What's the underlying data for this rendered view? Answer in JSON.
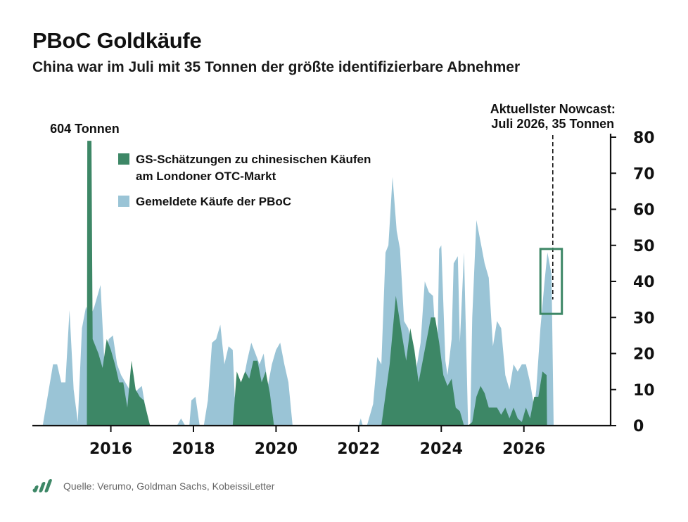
{
  "header": {
    "title": "PBoC Goldkäufe",
    "subtitle": "China war im Juli mit 35 Tonnen der größte identifizierbare Abnehmer"
  },
  "footer": {
    "source": "Quelle: Verumo, Goldman Sachs, KobeissiLetter",
    "logo_icon": "bar-chart-logo-icon"
  },
  "colors": {
    "gs_series": "#3d8766",
    "pboc_series": "#9ac4d6",
    "highlight_box": "#3d8766"
  },
  "chart_data": {
    "type": "area",
    "title": "PBoC Goldkäufe",
    "ylim": [
      0,
      80
    ],
    "yticks": [
      0,
      10,
      20,
      30,
      40,
      50,
      60,
      70,
      80
    ],
    "y_axis_side": "right",
    "xlim": [
      2014.1,
      2028.1
    ],
    "xticks": [
      2016,
      2018,
      2020,
      2022,
      2024,
      2026
    ],
    "grid": false,
    "legend_position": "top-left",
    "series": [
      {
        "name": "GS-Schätzungen zu chinesischen Käufen am Londoner OTC-Markt",
        "color": "#3d8766",
        "points": [
          [
            2015.42,
            0
          ],
          [
            2015.43,
            79
          ],
          [
            2015.53,
            79
          ],
          [
            2015.56,
            24
          ],
          [
            2015.7,
            20
          ],
          [
            2015.8,
            16
          ],
          [
            2015.9,
            24
          ],
          [
            2016.0,
            21
          ],
          [
            2016.1,
            17
          ],
          [
            2016.2,
            12
          ],
          [
            2016.3,
            12
          ],
          [
            2016.4,
            5
          ],
          [
            2016.5,
            18
          ],
          [
            2016.6,
            10
          ],
          [
            2016.7,
            8
          ],
          [
            2016.8,
            7
          ],
          [
            2016.95,
            0
          ],
          [
            2018.95,
            0
          ],
          [
            2019.05,
            15
          ],
          [
            2019.15,
            12
          ],
          [
            2019.25,
            15
          ],
          [
            2019.35,
            13
          ],
          [
            2019.45,
            18
          ],
          [
            2019.55,
            18
          ],
          [
            2019.65,
            12
          ],
          [
            2019.75,
            15
          ],
          [
            2019.85,
            9
          ],
          [
            2019.95,
            0
          ],
          [
            2022.55,
            0
          ],
          [
            2022.75,
            17
          ],
          [
            2022.9,
            36
          ],
          [
            2023.05,
            25
          ],
          [
            2023.15,
            18
          ],
          [
            2023.25,
            27
          ],
          [
            2023.35,
            21
          ],
          [
            2023.45,
            12
          ],
          [
            2023.55,
            18
          ],
          [
            2023.65,
            24
          ],
          [
            2023.75,
            30
          ],
          [
            2023.85,
            30
          ],
          [
            2023.95,
            23
          ],
          [
            2024.05,
            14
          ],
          [
            2024.15,
            11
          ],
          [
            2024.25,
            13
          ],
          [
            2024.35,
            5
          ],
          [
            2024.45,
            4
          ],
          [
            2024.55,
            0
          ],
          [
            2024.65,
            0
          ],
          [
            2024.75,
            1
          ],
          [
            2024.85,
            8
          ],
          [
            2024.95,
            11
          ],
          [
            2025.05,
            9
          ],
          [
            2025.15,
            5
          ],
          [
            2025.25,
            5
          ],
          [
            2025.35,
            5
          ],
          [
            2025.45,
            3
          ],
          [
            2025.55,
            5
          ],
          [
            2025.65,
            2
          ],
          [
            2025.75,
            5
          ],
          [
            2025.85,
            2
          ],
          [
            2025.95,
            1
          ],
          [
            2026.05,
            5
          ],
          [
            2026.15,
            2
          ],
          [
            2026.25,
            8
          ],
          [
            2026.35,
            8
          ],
          [
            2026.45,
            15
          ],
          [
            2026.55,
            14
          ],
          [
            2026.56,
            0
          ]
        ]
      },
      {
        "name": "Gemeldete Käufe der PBoC",
        "color": "#9ac4d6",
        "points": [
          [
            2014.35,
            0
          ],
          [
            2014.6,
            17
          ],
          [
            2014.7,
            17
          ],
          [
            2014.8,
            12
          ],
          [
            2014.9,
            12
          ],
          [
            2015.0,
            32
          ],
          [
            2015.1,
            10
          ],
          [
            2015.2,
            1
          ],
          [
            2015.3,
            27
          ],
          [
            2015.4,
            33
          ],
          [
            2015.5,
            30
          ],
          [
            2015.6,
            33
          ],
          [
            2015.75,
            39
          ],
          [
            2015.85,
            16
          ],
          [
            2015.95,
            24
          ],
          [
            2016.05,
            25
          ],
          [
            2016.15,
            17
          ],
          [
            2016.25,
            14
          ],
          [
            2016.35,
            12
          ],
          [
            2016.45,
            10
          ],
          [
            2016.55,
            8
          ],
          [
            2016.65,
            10
          ],
          [
            2016.75,
            11
          ],
          [
            2016.85,
            4
          ],
          [
            2016.95,
            0
          ],
          [
            2017.6,
            0
          ],
          [
            2017.7,
            2
          ],
          [
            2017.8,
            0
          ],
          [
            2017.9,
            0
          ],
          [
            2017.95,
            7
          ],
          [
            2018.05,
            8
          ],
          [
            2018.15,
            0
          ],
          [
            2018.25,
            0
          ],
          [
            2018.35,
            7
          ],
          [
            2018.45,
            23
          ],
          [
            2018.55,
            24
          ],
          [
            2018.65,
            28
          ],
          [
            2018.75,
            17
          ],
          [
            2018.85,
            22
          ],
          [
            2018.95,
            21
          ],
          [
            2019.0,
            8
          ],
          [
            2019.1,
            4
          ],
          [
            2019.2,
            12
          ],
          [
            2019.3,
            18
          ],
          [
            2019.4,
            23
          ],
          [
            2019.5,
            20
          ],
          [
            2019.6,
            17
          ],
          [
            2019.7,
            20
          ],
          [
            2019.8,
            11
          ],
          [
            2019.9,
            17
          ],
          [
            2020.0,
            21
          ],
          [
            2020.1,
            23
          ],
          [
            2020.2,
            17
          ],
          [
            2020.3,
            12
          ],
          [
            2020.4,
            0
          ],
          [
            2022.0,
            0
          ],
          [
            2022.05,
            2
          ],
          [
            2022.1,
            0
          ],
          [
            2022.2,
            0
          ],
          [
            2022.35,
            6
          ],
          [
            2022.45,
            19
          ],
          [
            2022.55,
            17
          ],
          [
            2022.65,
            48
          ],
          [
            2022.72,
            50
          ],
          [
            2022.82,
            69
          ],
          [
            2022.92,
            54
          ],
          [
            2023.0,
            49
          ],
          [
            2023.1,
            29
          ],
          [
            2023.2,
            27
          ],
          [
            2023.3,
            22
          ],
          [
            2023.4,
            16
          ],
          [
            2023.5,
            23
          ],
          [
            2023.6,
            40
          ],
          [
            2023.7,
            37
          ],
          [
            2023.8,
            36
          ],
          [
            2023.9,
            17
          ],
          [
            2023.95,
            49
          ],
          [
            2024.0,
            50
          ],
          [
            2024.1,
            18
          ],
          [
            2024.15,
            14
          ],
          [
            2024.25,
            24
          ],
          [
            2024.3,
            45
          ],
          [
            2024.4,
            47
          ],
          [
            2024.45,
            23
          ],
          [
            2024.55,
            48
          ],
          [
            2024.65,
            0
          ],
          [
            2024.7,
            0
          ],
          [
            2024.75,
            30
          ],
          [
            2024.85,
            57
          ],
          [
            2024.95,
            51
          ],
          [
            2025.05,
            45
          ],
          [
            2025.15,
            41
          ],
          [
            2025.25,
            22
          ],
          [
            2025.35,
            29
          ],
          [
            2025.45,
            27
          ],
          [
            2025.55,
            14
          ],
          [
            2025.65,
            10
          ],
          [
            2025.75,
            17
          ],
          [
            2025.85,
            15
          ],
          [
            2025.95,
            17
          ],
          [
            2026.05,
            17
          ],
          [
            2026.15,
            12
          ],
          [
            2026.25,
            5
          ],
          [
            2026.3,
            10
          ],
          [
            2026.4,
            27
          ],
          [
            2026.5,
            40
          ],
          [
            2026.57,
            48
          ],
          [
            2026.67,
            42
          ],
          [
            2026.72,
            0
          ]
        ]
      }
    ],
    "annotations": {
      "peak_label": "604 Tonnen",
      "peak_x": 2015.47,
      "nowcast_label_line1": "Aktuellster Nowcast:",
      "nowcast_label_line2": "Juli 2026, 35 Tonnen",
      "nowcast_x": 2026.7,
      "nowcast_value": 35,
      "highlight_box": {
        "x_range": [
          2026.4,
          2026.92
        ],
        "y_range": [
          31,
          49
        ]
      }
    }
  }
}
